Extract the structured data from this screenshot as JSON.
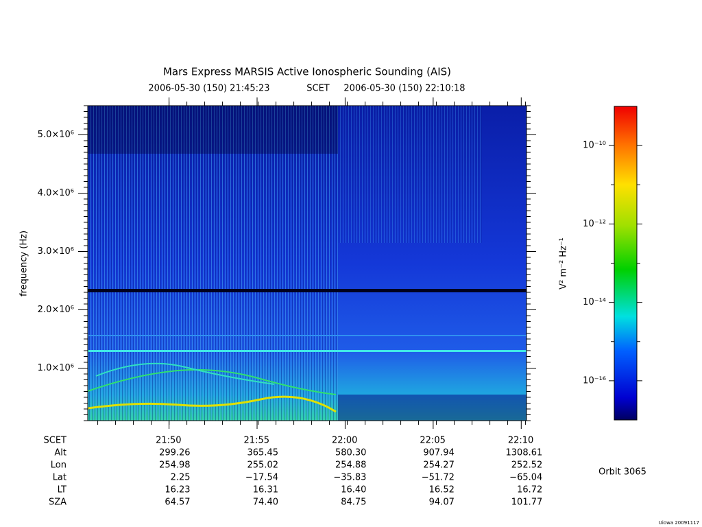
{
  "chart_data": {
    "type": "spectrogram",
    "title": "Mars Express MARSIS Active Ionospheric Sounding (AIS)",
    "subtitle_start": "2006-05-30 (150) 21:45:23",
    "subtitle_mid": "SCET",
    "subtitle_end": "2006-05-30 (150) 22:10:18",
    "y_label": "frequency (Hz)",
    "xlim": [
      "21:45:23",
      "22:10:18"
    ],
    "xticks": [
      "21:50",
      "21:55",
      "22:00",
      "22:05",
      "22:10"
    ],
    "ylim": [
      100000,
      5500000
    ],
    "yticks": [
      {
        "value": 1000000,
        "label": "1.0×10⁶"
      },
      {
        "value": 2000000,
        "label": "2.0×10⁶"
      },
      {
        "value": 3000000,
        "label": "3.0×10⁶"
      },
      {
        "value": 4000000,
        "label": "4.0×10⁶"
      },
      {
        "value": 5000000,
        "label": "5.0×10⁶"
      }
    ],
    "colorbar_label": "V² m⁻² Hz⁻¹",
    "zlim": [
      1e-17,
      1e-09
    ],
    "zscale": "log",
    "zticks": [
      {
        "value": 1e-10,
        "label": "10⁻¹⁰"
      },
      {
        "value": 1e-12,
        "label": "10⁻¹²"
      },
      {
        "value": 1e-14,
        "label": "10⁻¹⁴"
      },
      {
        "value": 1e-16,
        "label": "10⁻¹⁶"
      }
    ],
    "ephemeris": {
      "time_label": "SCET",
      "labels": [
        "Alt",
        "Lon",
        "Lat",
        "LT",
        "SZA"
      ],
      "rows": [
        [
          "299.26",
          "365.45",
          "580.30",
          "907.94",
          "1308.61"
        ],
        [
          "254.98",
          "255.02",
          "254.88",
          "254.27",
          "252.52"
        ],
        [
          "2.25",
          "−17.54",
          "−35.83",
          "−51.72",
          "−65.04"
        ],
        [
          "16.23",
          "16.31",
          "16.40",
          "16.52",
          "16.72"
        ],
        [
          "64.57",
          "74.40",
          "84.75",
          "94.07",
          "101.77"
        ]
      ]
    },
    "orbit": "Orbit 3065",
    "footer": "Uiowa 20091117"
  }
}
